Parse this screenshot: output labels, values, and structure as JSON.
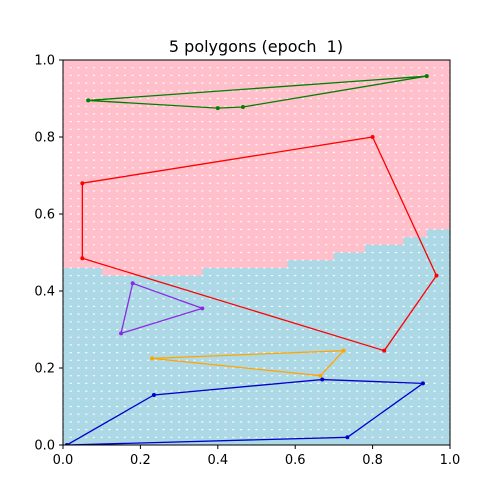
{
  "chart_data": {
    "type": "scatter",
    "title": "5 polygons (epoch  1)",
    "xlabel": "",
    "ylabel": "",
    "xlim": [
      0.0,
      1.0
    ],
    "ylim": [
      0.0,
      1.0
    ],
    "grid": false,
    "x_ticks": [
      "0.0",
      "0.2",
      "0.4",
      "0.6",
      "0.8",
      "1.0"
    ],
    "y_ticks": [
      "0.0",
      "0.2",
      "0.4",
      "0.6",
      "0.8",
      "1.0"
    ],
    "background": {
      "upper_region_color": "#ffc0cb",
      "lower_region_color": "#add8e6",
      "grid_dot_color": "#ffffff",
      "grid_step": 0.02,
      "boundary_steps": [
        {
          "x_from": 0.0,
          "x_to": 0.1,
          "y": 0.46
        },
        {
          "x_from": 0.1,
          "x_to": 0.36,
          "y": 0.44
        },
        {
          "x_from": 0.36,
          "x_to": 0.58,
          "y": 0.46
        },
        {
          "x_from": 0.58,
          "x_to": 0.7,
          "y": 0.48
        },
        {
          "x_from": 0.7,
          "x_to": 0.78,
          "y": 0.5
        },
        {
          "x_from": 0.78,
          "x_to": 0.88,
          "y": 0.52
        },
        {
          "x_from": 0.88,
          "x_to": 0.94,
          "y": 0.54
        },
        {
          "x_from": 0.94,
          "x_to": 1.0,
          "y": 0.56
        }
      ]
    },
    "polygons": [
      {
        "color": "#007f00",
        "points": [
          [
            0.065,
            0.895
          ],
          [
            0.4,
            0.875
          ],
          [
            0.465,
            0.878
          ],
          [
            0.94,
            0.958
          ]
        ]
      },
      {
        "color": "#ff0000",
        "points": [
          [
            0.05,
            0.68
          ],
          [
            0.8,
            0.8
          ],
          [
            0.965,
            0.44
          ],
          [
            0.83,
            0.245
          ],
          [
            0.05,
            0.485
          ]
        ]
      },
      {
        "color": "#8a2be2",
        "points": [
          [
            0.18,
            0.42
          ],
          [
            0.36,
            0.355
          ],
          [
            0.15,
            0.29
          ]
        ]
      },
      {
        "color": "#ffa500",
        "points": [
          [
            0.23,
            0.225
          ],
          [
            0.725,
            0.245
          ],
          [
            0.665,
            0.18
          ]
        ]
      },
      {
        "color": "#0000cd",
        "points": [
          [
            0.01,
            0.0
          ],
          [
            0.235,
            0.13
          ],
          [
            0.67,
            0.17
          ],
          [
            0.93,
            0.16
          ],
          [
            0.735,
            0.02
          ]
        ]
      }
    ]
  }
}
